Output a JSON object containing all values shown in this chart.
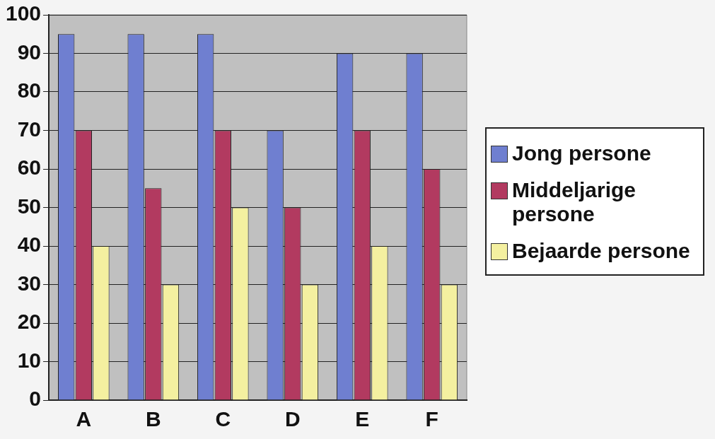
{
  "chart_data": {
    "type": "bar",
    "categories": [
      "A",
      "B",
      "C",
      "D",
      "E",
      "F"
    ],
    "series": [
      {
        "name": "Jong persone",
        "color": "#6f7fd0",
        "values": [
          95,
          95,
          95,
          70,
          90,
          90
        ]
      },
      {
        "name": "Middeljarige persone",
        "color": "#b23a60",
        "values": [
          70,
          55,
          70,
          50,
          70,
          60
        ]
      },
      {
        "name": "Bejaarde persone",
        "color": "#f4f0a0",
        "values": [
          40,
          30,
          50,
          30,
          40,
          30
        ]
      }
    ],
    "ylim": [
      0,
      100
    ],
    "yticks": [
      0,
      10,
      20,
      30,
      40,
      50,
      60,
      70,
      80,
      90,
      100
    ],
    "grid": "y",
    "legend": "right"
  }
}
